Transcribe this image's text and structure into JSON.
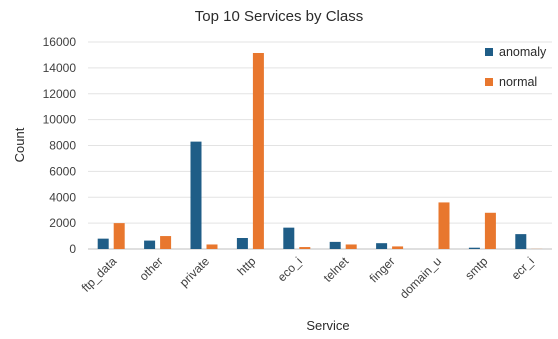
{
  "chart_data": {
    "type": "bar",
    "title": "Top 10 Services by Class",
    "xlabel": "Service",
    "ylabel": "Count",
    "categories": [
      "ftp_data",
      "other",
      "private",
      "http",
      "eco_i",
      "telnet",
      "finger",
      "domain_u",
      "smtp",
      "ecr_i"
    ],
    "series": [
      {
        "name": "anomaly",
        "color": "#1f5d87",
        "values": [
          800,
          650,
          8300,
          850,
          1650,
          550,
          450,
          0,
          100,
          1150
        ]
      },
      {
        "name": "normal",
        "color": "#e8772e",
        "values": [
          2000,
          1000,
          350,
          15150,
          150,
          350,
          200,
          3600,
          2800,
          10
        ]
      }
    ],
    "ylim": [
      0,
      16000
    ],
    "yticks": [
      0,
      2000,
      4000,
      6000,
      8000,
      10000,
      12000,
      14000,
      16000
    ],
    "grid": true,
    "legend_position": "top-right"
  }
}
